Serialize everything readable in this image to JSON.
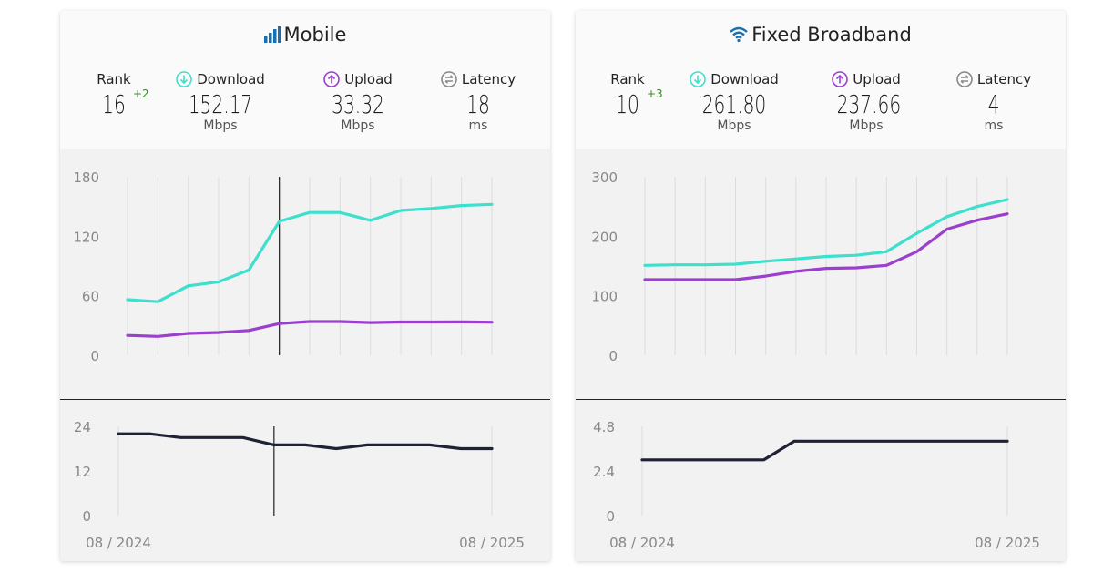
{
  "mobile": {
    "title": "Mobile",
    "icon": "signal-bars-icon",
    "rank": {
      "label": "Rank",
      "value": "16",
      "change": "+2"
    },
    "download": {
      "label": "Download",
      "value": "152.17",
      "unit": "Mbps",
      "icon": "download-arrow-icon"
    },
    "upload": {
      "label": "Upload",
      "value": "33.32",
      "unit": "Mbps",
      "icon": "upload-arrow-icon"
    },
    "latency": {
      "label": "Latency",
      "value": "18",
      "unit": "ms",
      "icon": "latency-icon"
    },
    "x_start_label": "08 / 2024",
    "x_end_label": "08 / 2025"
  },
  "fixed": {
    "title": "Fixed Broadband",
    "icon": "wifi-icon",
    "rank": {
      "label": "Rank",
      "value": "10",
      "change": "+3"
    },
    "download": {
      "label": "Download",
      "value": "261.80",
      "unit": "Mbps",
      "icon": "download-arrow-icon"
    },
    "upload": {
      "label": "Upload",
      "value": "237.66",
      "unit": "Mbps",
      "icon": "upload-arrow-icon"
    },
    "latency": {
      "label": "Latency",
      "value": "4",
      "unit": "ms",
      "icon": "latency-icon"
    },
    "x_start_label": "08 / 2024",
    "x_end_label": "08 / 2025"
  },
  "colors": {
    "download": "#3de0cc",
    "upload": "#9b3fce",
    "latency": "#1f2236",
    "rank_change": "#3a8a2a",
    "title_icon": "#1a6fb0"
  },
  "chart_data": [
    {
      "type": "line",
      "panel": "mobile-speed",
      "x": [
        "2024-08",
        "2024-09",
        "2024-10",
        "2024-11",
        "2024-12",
        "2025-01",
        "2025-02",
        "2025-03",
        "2025-04",
        "2025-05",
        "2025-06",
        "2025-07",
        "2025-08"
      ],
      "series": [
        {
          "name": "Download",
          "values": [
            56,
            54,
            70,
            74,
            86,
            135,
            144,
            144,
            136,
            146,
            148,
            151,
            152.17
          ]
        },
        {
          "name": "Upload",
          "values": [
            20,
            19,
            22,
            23,
            25,
            32,
            34,
            34,
            33,
            33.5,
            33.5,
            33.6,
            33.32
          ]
        }
      ],
      "yticks": [
        0,
        60,
        120,
        180
      ],
      "ylim": [
        0,
        180
      ],
      "grid": true,
      "xlabel": "",
      "ylabel": ""
    },
    {
      "type": "line",
      "panel": "mobile-latency",
      "x": [
        "2024-08",
        "2024-09",
        "2024-10",
        "2024-11",
        "2024-12",
        "2025-01",
        "2025-02",
        "2025-03",
        "2025-04",
        "2025-05",
        "2025-06",
        "2025-07",
        "2025-08"
      ],
      "series": [
        {
          "name": "Latency",
          "values": [
            22,
            22,
            21,
            21,
            21,
            19,
            19,
            18,
            19,
            19,
            19,
            18,
            18
          ]
        }
      ],
      "yticks": [
        0,
        12,
        24
      ],
      "ylim": [
        0,
        24
      ],
      "grid": false,
      "xticklabels": [
        "08 / 2024",
        "08 / 2025"
      ]
    },
    {
      "type": "line",
      "panel": "fixed-speed",
      "x": [
        "2024-08",
        "2024-09",
        "2024-10",
        "2024-11",
        "2024-12",
        "2025-01",
        "2025-02",
        "2025-03",
        "2025-04",
        "2025-05",
        "2025-06",
        "2025-07",
        "2025-08"
      ],
      "series": [
        {
          "name": "Download",
          "values": [
            151,
            152,
            152,
            153,
            158,
            162,
            166,
            168,
            174,
            205,
            233,
            250,
            261.8
          ]
        },
        {
          "name": "Upload",
          "values": [
            127,
            127,
            127,
            127,
            133,
            141,
            146,
            147,
            151,
            174,
            212,
            227,
            237.66
          ]
        }
      ],
      "yticks": [
        0,
        100,
        200,
        300
      ],
      "ylim": [
        0,
        300
      ],
      "grid": true,
      "xlabel": "",
      "ylabel": ""
    },
    {
      "type": "line",
      "panel": "fixed-latency",
      "x": [
        "2024-08",
        "2024-09",
        "2024-10",
        "2024-11",
        "2024-12",
        "2025-01",
        "2025-02",
        "2025-03",
        "2025-04",
        "2025-05",
        "2025-06",
        "2025-07",
        "2025-08"
      ],
      "series": [
        {
          "name": "Latency",
          "values": [
            3,
            3,
            3,
            3,
            3,
            4,
            4,
            4,
            4,
            4,
            4,
            4,
            4
          ]
        }
      ],
      "yticks": [
        "0",
        "2.4",
        "4.8"
      ],
      "ylim": [
        0,
        4.8
      ],
      "grid": false,
      "xticklabels": [
        "08 / 2024",
        "08 / 2025"
      ]
    }
  ]
}
